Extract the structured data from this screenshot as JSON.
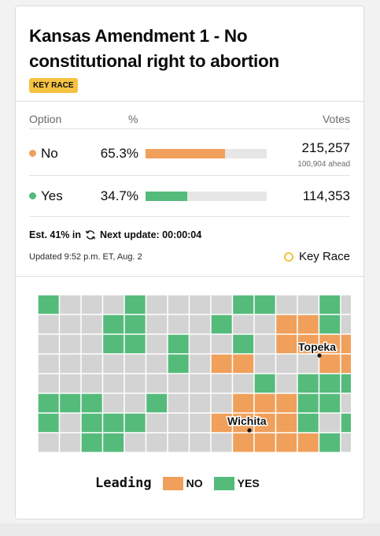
{
  "race": {
    "title": "Kansas Amendment 1 - No constitutional right to abortion",
    "badge": "KEY RACE"
  },
  "table": {
    "headers": {
      "option": "Option",
      "percent": "%",
      "votes": "Votes"
    },
    "rows": [
      {
        "label": "No",
        "percent": "65.3%",
        "share": 0.653,
        "votes": "215,257",
        "ahead": "100,904 ahead",
        "color": "#f0a05a"
      },
      {
        "label": "Yes",
        "percent": "34.7%",
        "share": 0.347,
        "votes": "114,353",
        "ahead": "",
        "color": "#55bb7b"
      }
    ]
  },
  "status": {
    "estimate": "Est. 41% in",
    "next_update": "Next update: 00:00:04",
    "updated": "Updated 9:52 p.m. ET, Aug. 2",
    "key_race": "Key Race",
    "key_race_color": "#f5c342"
  },
  "map": {
    "cities": {
      "topeka": "Topeka",
      "wichita": "Wichita"
    },
    "colors": {
      "no": "#f0a05a",
      "yes": "#55bb7b",
      "none": "#d3d3d3"
    }
  },
  "legend": {
    "title": "Leading",
    "no": "NO",
    "yes": "YES"
  }
}
